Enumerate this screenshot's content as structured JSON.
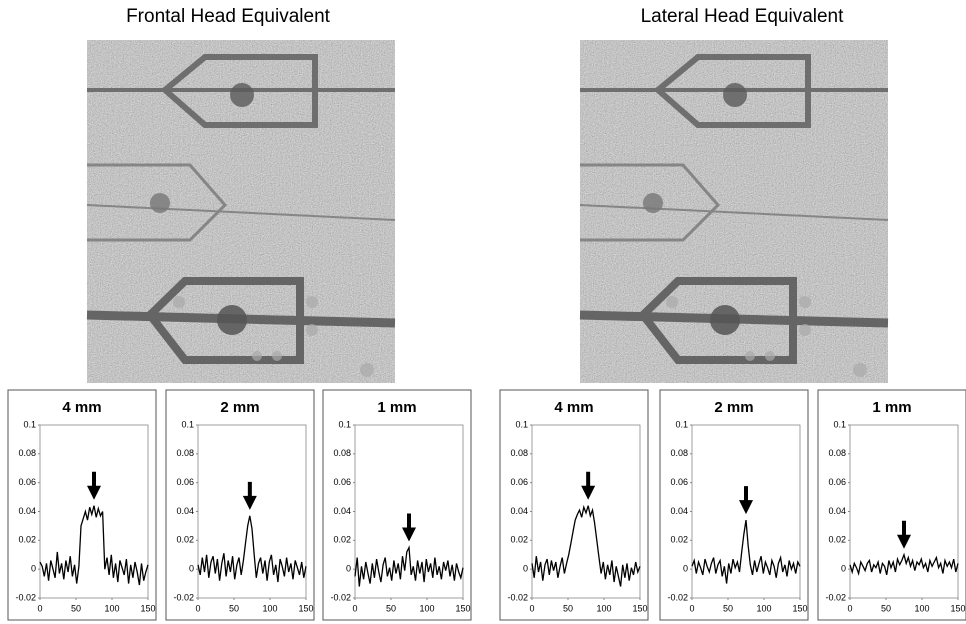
{
  "figure_titles": [
    "Frontal Head Equivalent",
    "Lateral Head Equivalent"
  ],
  "chart_data": [
    {
      "type": "line",
      "title": "4 mm",
      "xlim": [
        0,
        150
      ],
      "ylim": [
        -0.02,
        0.1
      ],
      "xticks": [
        0,
        50,
        100,
        150
      ],
      "yticks": [
        -0.02,
        0,
        0.02,
        0.04,
        0.06,
        0.08,
        0.1
      ],
      "x": [
        0,
        3,
        6,
        9,
        12,
        15,
        18,
        21,
        24,
        27,
        30,
        33,
        36,
        39,
        42,
        45,
        48,
        51,
        54,
        57,
        60,
        63,
        66,
        69,
        72,
        75,
        78,
        81,
        84,
        87,
        90,
        93,
        96,
        99,
        102,
        105,
        108,
        111,
        114,
        117,
        120,
        123,
        126,
        129,
        132,
        135,
        138,
        141,
        144,
        147,
        150
      ],
      "series": [
        {
          "color": "#000000",
          "values": [
            0.005,
            0.002,
            -0.005,
            0.004,
            -0.008,
            0.006,
            0,
            -0.006,
            0.012,
            -0.003,
            0.004,
            -0.007,
            0.006,
            -0.002,
            0.009,
            -0.005,
            0.003,
            -0.01,
            0.002,
            0.03,
            0.035,
            0.04,
            0.034,
            0.043,
            0.038,
            0.044,
            0.036,
            0.042,
            0.037,
            0.04,
            0,
            0.008,
            -0.004,
            0.01,
            -0.006,
            0.004,
            -0.009,
            0.006,
            0.001,
            -0.004,
            0.007,
            -0.01,
            0.003,
            -0.006,
            0.005,
            -0.002,
            -0.011,
            0.004,
            -0.008,
            -0.002,
            0.003
          ]
        }
      ]
    },
    {
      "type": "line",
      "title": "2 mm",
      "xlim": [
        0,
        150
      ],
      "ylim": [
        -0.02,
        0.1
      ],
      "xticks": [
        0,
        50,
        100,
        150
      ],
      "yticks": [
        -0.02,
        0,
        0.02,
        0.04,
        0.06,
        0.08,
        0.1
      ],
      "x": [
        0,
        3,
        6,
        9,
        12,
        15,
        18,
        21,
        24,
        27,
        30,
        33,
        36,
        39,
        42,
        45,
        48,
        51,
        54,
        57,
        60,
        63,
        66,
        69,
        72,
        75,
        78,
        81,
        84,
        87,
        90,
        93,
        96,
        99,
        102,
        105,
        108,
        111,
        114,
        117,
        120,
        123,
        126,
        129,
        132,
        135,
        138,
        141,
        144,
        147,
        150
      ],
      "series": [
        {
          "color": "#000000",
          "values": [
            0.003,
            -0.004,
            0.008,
            -0.002,
            0.01,
            -0.006,
            0.005,
            0.009,
            -0.003,
            0.007,
            -0.008,
            0.004,
            0.011,
            -0.005,
            0.006,
            -0.002,
            0.009,
            -0.007,
            0.003,
            0.008,
            -0.004,
            0.006,
            0.018,
            0.03,
            0.037,
            0.028,
            0.01,
            -0.006,
            0.004,
            0.008,
            -0.003,
            0.006,
            -0.008,
            0.005,
            0.01,
            -0.004,
            0.003,
            -0.009,
            0.007,
            0.002,
            -0.005,
            0.008,
            -0.002,
            0.004,
            -0.007,
            0.006,
            0.001,
            -0.004,
            0.005,
            -0.006,
            0.002
          ]
        }
      ]
    },
    {
      "type": "line",
      "title": "1 mm",
      "xlim": [
        0,
        150
      ],
      "ylim": [
        -0.02,
        0.1
      ],
      "xticks": [
        0,
        50,
        100,
        150
      ],
      "yticks": [
        -0.02,
        0,
        0.02,
        0.04,
        0.06,
        0.08,
        0.1
      ],
      "x": [
        0,
        3,
        6,
        9,
        12,
        15,
        18,
        21,
        24,
        27,
        30,
        33,
        36,
        39,
        42,
        45,
        48,
        51,
        54,
        57,
        60,
        63,
        66,
        69,
        72,
        75,
        78,
        81,
        84,
        87,
        90,
        93,
        96,
        99,
        102,
        105,
        108,
        111,
        114,
        117,
        120,
        123,
        126,
        129,
        132,
        135,
        138,
        141,
        144,
        147,
        150
      ],
      "series": [
        {
          "color": "#000000",
          "values": [
            -0.005,
            0.008,
            -0.012,
            0.002,
            -0.007,
            0.005,
            -0.003,
            -0.01,
            0.004,
            -0.006,
            0.007,
            -0.002,
            -0.009,
            0.003,
            0.008,
            -0.005,
            0.001,
            -0.008,
            0.006,
            -0.003,
            0.004,
            -0.007,
            0.009,
            -0.001,
            0.012,
            0.015,
            -0.004,
            0.002,
            -0.008,
            0.006,
            -0.003,
            0.005,
            -0.009,
            0.007,
            -0.002,
            0.004,
            -0.006,
            0.008,
            -0.004,
            0.002,
            -0.007,
            0.005,
            -0.001,
            0.006,
            -0.005,
            0.003,
            -0.008,
            0.004,
            -0.002,
            -0.006,
            0.001
          ]
        }
      ]
    },
    {
      "type": "line",
      "title": "4 mm",
      "xlim": [
        0,
        150
      ],
      "ylim": [
        -0.02,
        0.1
      ],
      "xticks": [
        0,
        50,
        100,
        150
      ],
      "yticks": [
        -0.02,
        0,
        0.02,
        0.04,
        0.06,
        0.08,
        0.1
      ],
      "x": [
        0,
        3,
        6,
        9,
        12,
        15,
        18,
        21,
        24,
        27,
        30,
        33,
        36,
        39,
        42,
        45,
        48,
        51,
        54,
        57,
        60,
        63,
        66,
        69,
        72,
        75,
        78,
        81,
        84,
        87,
        90,
        93,
        96,
        99,
        102,
        105,
        108,
        111,
        114,
        117,
        120,
        123,
        126,
        129,
        132,
        135,
        138,
        141,
        144,
        147,
        150
      ],
      "series": [
        {
          "color": "#000000",
          "values": [
            0.004,
            -0.006,
            0.009,
            -0.002,
            0.005,
            -0.008,
            0.003,
            0.007,
            -0.004,
            0.006,
            -0.001,
            0.005,
            -0.006,
            0.002,
            0.008,
            -0.003,
            0.004,
            0.01,
            0.018,
            0.026,
            0.034,
            0.038,
            0.041,
            0.036,
            0.043,
            0.039,
            0.044,
            0.037,
            0.041,
            0.032,
            0.02,
            0.008,
            -0.003,
            0.005,
            -0.007,
            0.003,
            -0.004,
            0.006,
            -0.009,
            0.002,
            -0.005,
            -0.012,
            0.003,
            -0.006,
            0.004,
            -0.008,
            0.001,
            -0.004,
            0.005,
            -0.002,
            0.002
          ]
        }
      ]
    },
    {
      "type": "line",
      "title": "2 mm",
      "xlim": [
        0,
        150
      ],
      "ylim": [
        -0.02,
        0.1
      ],
      "xticks": [
        0,
        50,
        100,
        150
      ],
      "yticks": [
        -0.02,
        0,
        0.02,
        0.04,
        0.06,
        0.08,
        0.1
      ],
      "x": [
        0,
        3,
        6,
        9,
        12,
        15,
        18,
        21,
        24,
        27,
        30,
        33,
        36,
        39,
        42,
        45,
        48,
        51,
        54,
        57,
        60,
        63,
        66,
        69,
        72,
        75,
        78,
        81,
        84,
        87,
        90,
        93,
        96,
        99,
        102,
        105,
        108,
        111,
        114,
        117,
        120,
        123,
        126,
        129,
        132,
        135,
        138,
        141,
        144,
        147,
        150
      ],
      "series": [
        {
          "color": "#000000",
          "values": [
            0.002,
            0.006,
            -0.003,
            0.005,
            0.001,
            -0.004,
            0.007,
            0.002,
            -0.002,
            0.004,
            0.008,
            -0.003,
            0.003,
            0.006,
            -0.005,
            0.002,
            -0.01,
            0.004,
            -0.003,
            0.007,
            0.001,
            0.005,
            -0.002,
            0.012,
            0.024,
            0.034,
            0.016,
            0.003,
            -0.004,
            0.006,
            -0.002,
            0.004,
            0.009,
            -0.003,
            0.005,
            0.001,
            -0.004,
            0.006,
            0.002,
            -0.006,
            0.004,
            0.008,
            -0.002,
            0.003,
            -0.005,
            0.006,
            0,
            0.004,
            -0.003,
            0.005,
            0.002
          ]
        }
      ]
    },
    {
      "type": "line",
      "title": "1 mm",
      "xlim": [
        0,
        150
      ],
      "ylim": [
        -0.02,
        0.1
      ],
      "xticks": [
        0,
        50,
        100,
        150
      ],
      "yticks": [
        -0.02,
        0,
        0.02,
        0.04,
        0.06,
        0.08,
        0.1
      ],
      "x": [
        0,
        3,
        6,
        9,
        12,
        15,
        18,
        21,
        24,
        27,
        30,
        33,
        36,
        39,
        42,
        45,
        48,
        51,
        54,
        57,
        60,
        63,
        66,
        69,
        72,
        75,
        78,
        81,
        84,
        87,
        90,
        93,
        96,
        99,
        102,
        105,
        108,
        111,
        114,
        117,
        120,
        123,
        126,
        129,
        132,
        135,
        138,
        141,
        144,
        147,
        150
      ],
      "series": [
        {
          "color": "#000000",
          "values": [
            0.003,
            -0.002,
            0.004,
            0.001,
            -0.003,
            0.005,
            0.002,
            -0.001,
            0.004,
            0.006,
            -0.002,
            0.003,
            0.001,
            0.005,
            -0.003,
            0.004,
            0.002,
            -0.004,
            0.006,
            0.001,
            0.005,
            -0.002,
            0.007,
            0.003,
            0.006,
            0.01,
            0.004,
            0.008,
            0.002,
            0.006,
            -0.001,
            0.005,
            0.003,
            0.007,
            0.001,
            0.004,
            -0.002,
            0.006,
            0.002,
            0.005,
            0.008,
            0.001,
            0.004,
            -0.003,
            0.006,
            0.002,
            0.005,
            0.001,
            0.007,
            -0.002,
            0.004
          ]
        }
      ]
    }
  ]
}
